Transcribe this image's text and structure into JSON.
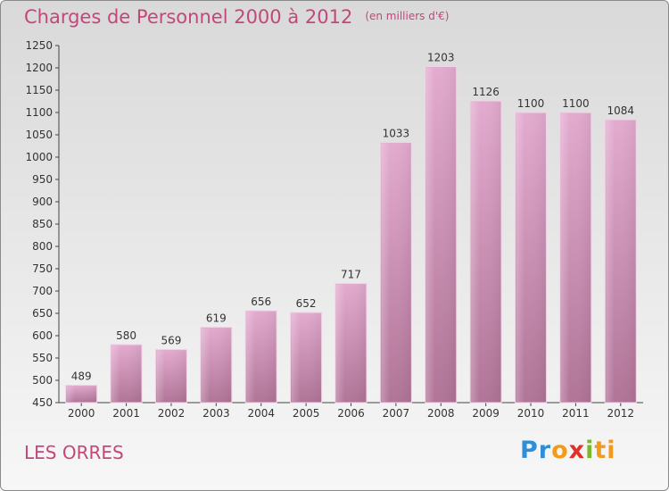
{
  "header": {
    "title": "Charges de Personnel 2000 à 2012",
    "subtitle": "(en milliers d'€)"
  },
  "footer": {
    "location": "LES ORRES",
    "brand_parts": [
      "Pr",
      "o",
      "x",
      "i",
      "ti"
    ]
  },
  "colors": {
    "title": "#c2477a",
    "bar_top": "#e0a8cb",
    "bar_bottom": "#b27599",
    "bar_edge": "#f1d3e5"
  },
  "chart_data": {
    "type": "bar",
    "title": "Charges de Personnel 2000 à 2012",
    "subtitle": "(en milliers d'€)",
    "xlabel": "",
    "ylabel": "",
    "categories": [
      "2000",
      "2001",
      "2002",
      "2003",
      "2004",
      "2005",
      "2006",
      "2007",
      "2008",
      "2009",
      "2010",
      "2011",
      "2012"
    ],
    "values": [
      489,
      580,
      569,
      619,
      656,
      652,
      717,
      1033,
      1203,
      1126,
      1100,
      1100,
      1084
    ],
    "ylim": [
      450,
      1250
    ],
    "yticks": [
      450,
      500,
      550,
      600,
      650,
      700,
      750,
      800,
      850,
      900,
      950,
      1000,
      1050,
      1100,
      1150,
      1200,
      1250
    ],
    "grid": false,
    "legend": "none"
  }
}
